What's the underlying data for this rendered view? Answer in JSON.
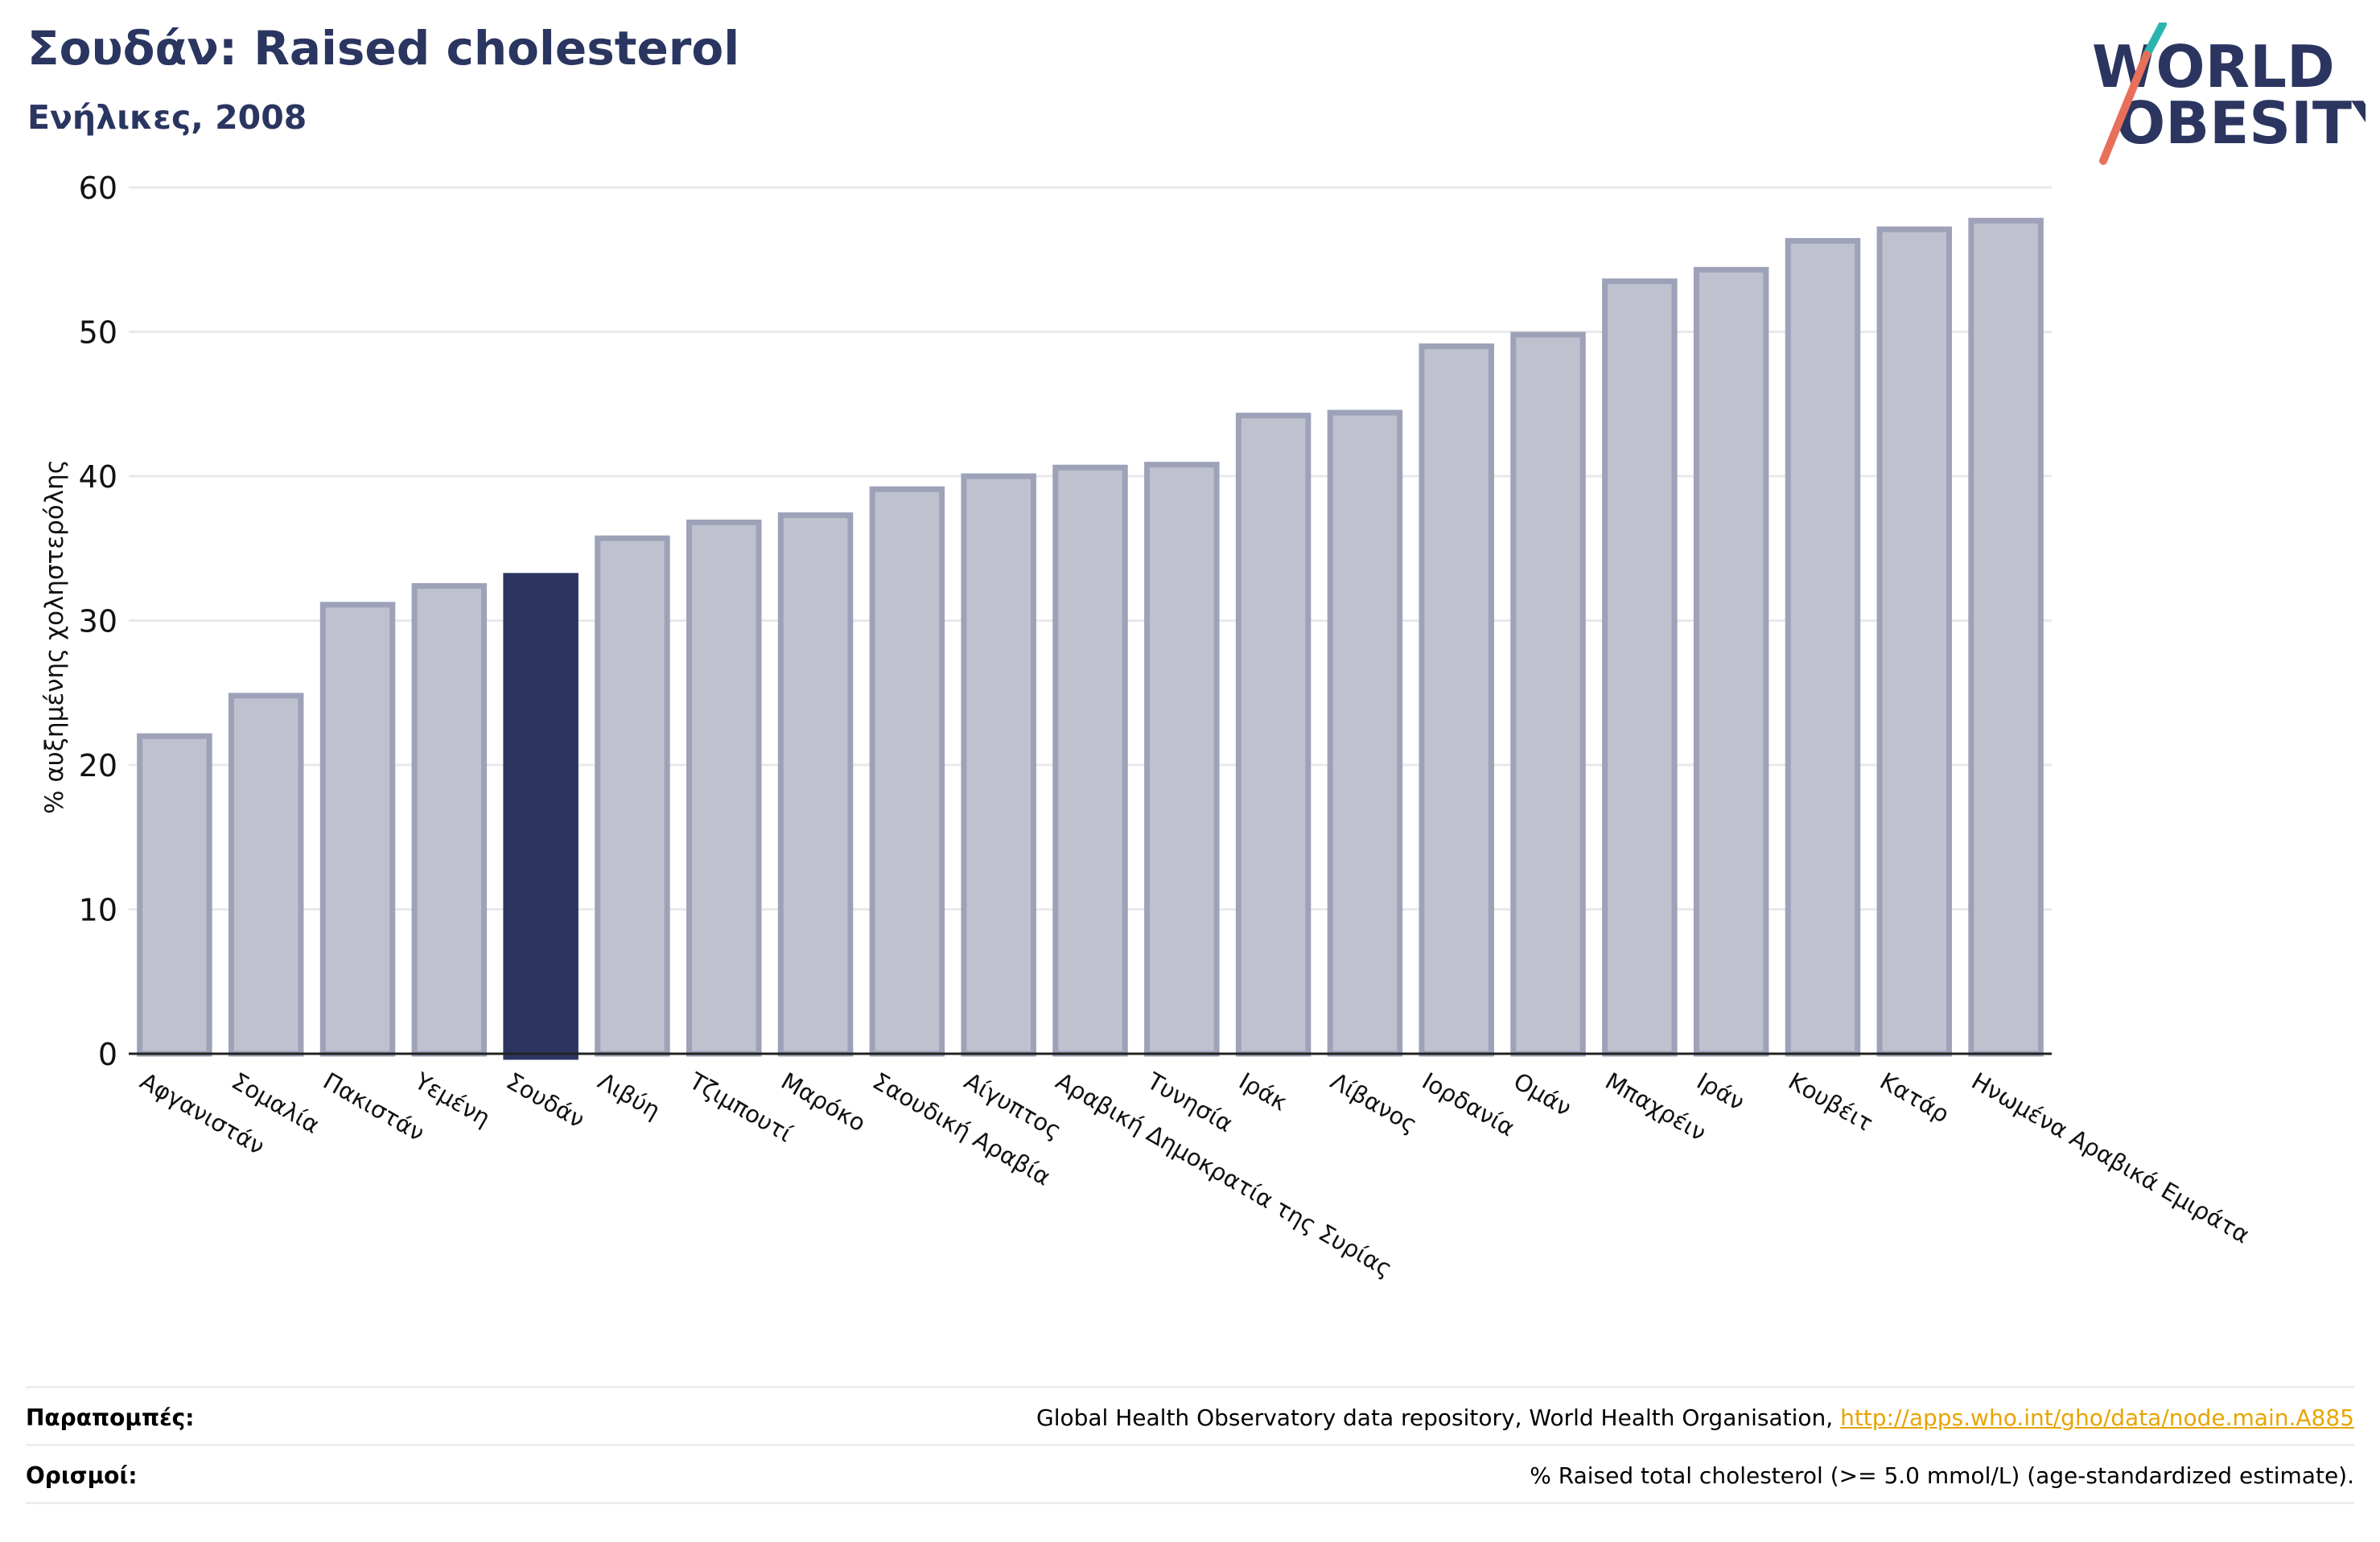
{
  "header": {
    "title": "Σουδάν: Raised cholesterol",
    "subtitle": "Ενήλικες, 2008"
  },
  "logo": {
    "line1": "WORLD",
    "line2": "OBESITY"
  },
  "chart_data": {
    "type": "bar",
    "ylabel": "% αυξημένης χοληστερόλης",
    "xlabel": "",
    "ylim": [
      0,
      60
    ],
    "yticks": [
      0,
      10,
      20,
      30,
      40,
      50,
      60
    ],
    "grid": true,
    "highlight": "Σουδάν",
    "colors": {
      "bar": "#bfc1ce",
      "bar_edge": "#9ea2b8",
      "highlight": "#2b3560"
    },
    "categories": [
      "Αφγανιστάν",
      "Σομαλία",
      "Πακιστάν",
      "Υεμένη",
      "Σουδάν",
      "Λιβύη",
      "Τζιμπουτί",
      "Μαρόκο",
      "Σαουδική Αραβία",
      "Αίγυπτος",
      "Αραβική Δημοκρατία της Συρίας",
      "Τυνησία",
      "Ιράκ",
      "Λίβανος",
      "Ιορδανία",
      "Ομάν",
      "Μπαχρέιν",
      "Ιράν",
      "Κουβέιτ",
      "Κατάρ",
      "Ηνωμένα Αραβικά Εμιράτα"
    ],
    "values": [
      22.0,
      24.8,
      31.1,
      32.4,
      33.1,
      35.7,
      36.8,
      37.3,
      39.1,
      40.0,
      40.6,
      40.8,
      44.2,
      44.4,
      49.0,
      49.8,
      53.5,
      54.3,
      56.3,
      57.1,
      57.7
    ]
  },
  "footer": {
    "references_label": "Παραπομπές:",
    "references_text": "Global Health Observatory data repository, World Health Organisation, ",
    "references_link": "http://apps.who.int/gho/data/node.main.A885",
    "definitions_label": "Ορισμοί:",
    "definitions_text": "% Raised total cholesterol (>= 5.0 mmol/L) (age-standardized estimate)."
  }
}
